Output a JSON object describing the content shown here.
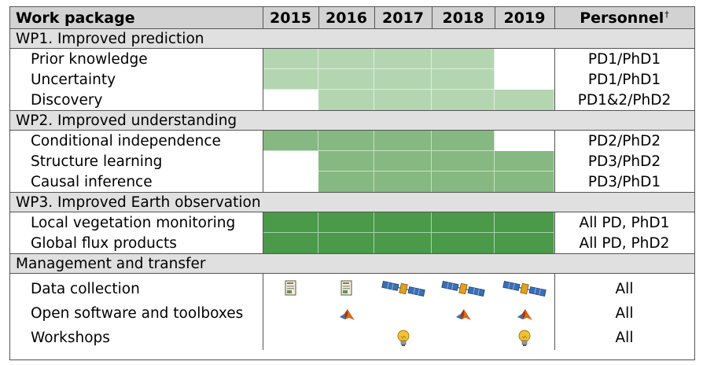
{
  "header": {
    "work_package": "Work package",
    "years": [
      "2015",
      "2016",
      "2017",
      "2018",
      "2019"
    ],
    "personnel": "Personnel",
    "personnel_mark": "†"
  },
  "sections": [
    {
      "title": "WP1. Improved prediction",
      "color": "#b3d6b1",
      "rows": [
        {
          "label": "Prior knowledge",
          "personnel": "PD1/PhD1",
          "active_years": [
            "2015",
            "2016",
            "2017",
            "2018"
          ]
        },
        {
          "label": "Uncertainty",
          "personnel": "PD1/PhD1",
          "active_years": [
            "2015",
            "2016",
            "2017",
            "2018"
          ]
        },
        {
          "label": "Discovery",
          "personnel": "PD1&2/PhD2",
          "active_years": [
            "2016",
            "2017",
            "2018",
            "2019"
          ]
        }
      ]
    },
    {
      "title": "WP2. Improved understanding",
      "color": "#86b881",
      "rows": [
        {
          "label": "Conditional independence",
          "personnel": "PD2/PhD2",
          "active_years": [
            "2015",
            "2016",
            "2017",
            "2018"
          ]
        },
        {
          "label": "Structure learning",
          "personnel": "PD3/PhD2",
          "active_years": [
            "2016",
            "2017",
            "2018",
            "2019"
          ]
        },
        {
          "label": "Causal inference",
          "personnel": "PD3/PhD1",
          "active_years": [
            "2016",
            "2017",
            "2018",
            "2019"
          ]
        }
      ]
    },
    {
      "title": "WP3. Improved Earth observation",
      "color": "#4a9a4a",
      "rows": [
        {
          "label": "Local vegetation monitoring",
          "personnel": "All PD, PhD1",
          "active_years": [
            "2015",
            "2016",
            "2017",
            "2018",
            "2019"
          ]
        },
        {
          "label": "Global flux products",
          "personnel": "All PD, PhD2",
          "active_years": [
            "2015",
            "2016",
            "2017",
            "2018",
            "2019"
          ]
        }
      ]
    },
    {
      "title": "Management and transfer",
      "rows": [
        {
          "label": "Data collection",
          "personnel": "All",
          "icons": [
            {
              "year": "2015",
              "icon": "document-icon"
            },
            {
              "year": "2016",
              "icon": "document-icon"
            },
            {
              "year": "2017",
              "icon": "satellite-icon"
            },
            {
              "year": "2018",
              "icon": "satellite-icon"
            },
            {
              "year": "2019",
              "icon": "satellite-icon"
            }
          ]
        },
        {
          "label": "Open software and toolboxes",
          "personnel": "All",
          "icons": [
            {
              "year": "2016",
              "icon": "matlab-logo-icon"
            },
            {
              "year": "2018",
              "icon": "matlab-logo-icon"
            },
            {
              "year": "2019",
              "icon": "matlab-logo-icon"
            }
          ]
        },
        {
          "label": "Workshops",
          "personnel": "All",
          "icons": [
            {
              "year": "2017",
              "icon": "lightbulb-icon"
            },
            {
              "year": "2019",
              "icon": "lightbulb-icon"
            }
          ]
        }
      ]
    }
  ]
}
